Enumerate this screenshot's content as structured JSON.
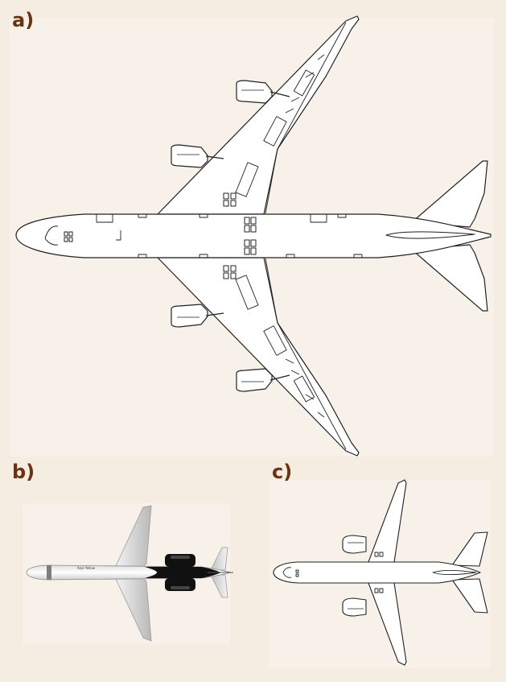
{
  "panels": [
    {
      "id": "a",
      "label": "a)"
    },
    {
      "id": "b",
      "label": "b)",
      "fuselage_text": "Azul Yellow"
    },
    {
      "id": "c",
      "label": "c)"
    }
  ],
  "colors": {
    "background": "#f5ece2",
    "panel_background": "#f8f1e9",
    "label": "#6b3310",
    "outline": "#222222",
    "fill": "#ffffff"
  }
}
